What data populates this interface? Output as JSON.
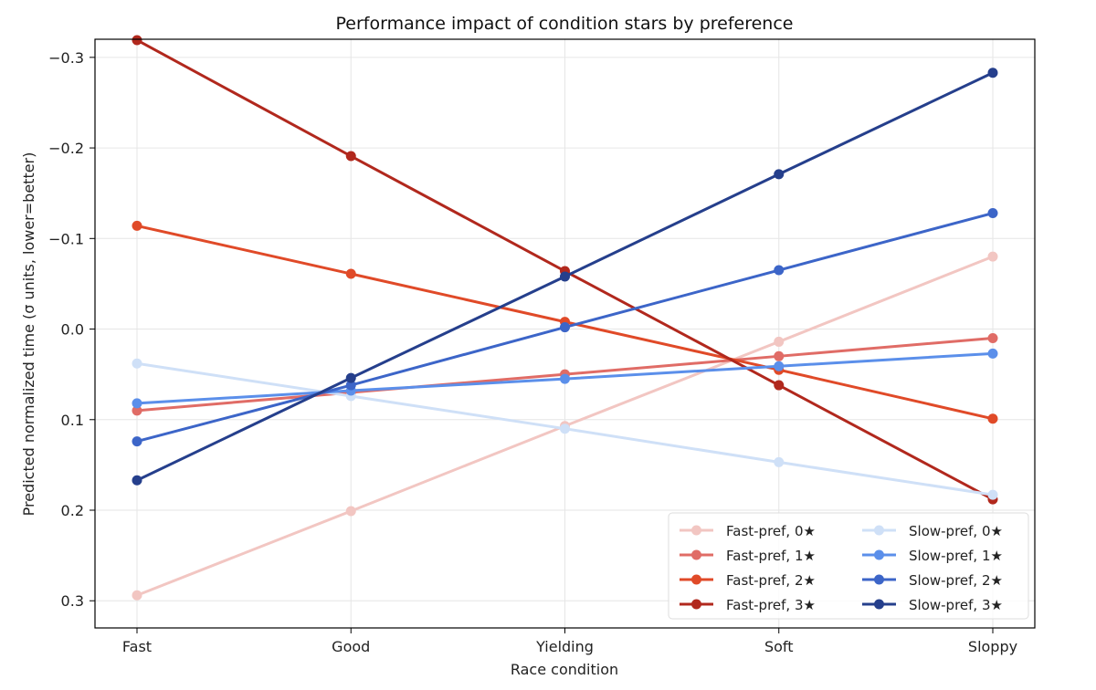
{
  "chart_data": {
    "type": "line",
    "title": "Performance impact of condition stars by preference",
    "xlabel": "Race condition",
    "ylabel": "Predicted normalized time (σ units, lower=better)",
    "categories": [
      "Fast",
      "Good",
      "Yielding",
      "Soft",
      "Sloppy"
    ],
    "y_inverted": true,
    "ylim": [
      -0.32,
      0.33
    ],
    "yticks": [
      -0.3,
      -0.2,
      -0.1,
      0.0,
      0.1,
      0.2,
      0.3
    ],
    "ytick_labels": [
      "−0.3",
      "−0.2",
      "−0.1",
      "0.0",
      "0.1",
      "0.2",
      "0.3"
    ],
    "grid": true,
    "legend_position": "bottom-right",
    "legend_columns": 2,
    "series": [
      {
        "name": "Fast-pref, 0★",
        "color": "#f2c6c2",
        "values": [
          0.294,
          0.201,
          0.107,
          0.014,
          -0.08
        ]
      },
      {
        "name": "Fast-pref, 1★",
        "color": "#e06c66",
        "values": [
          0.09,
          0.07,
          0.05,
          0.03,
          0.01
        ]
      },
      {
        "name": "Fast-pref, 2★",
        "color": "#e04a28",
        "values": [
          -0.114,
          -0.061,
          -0.008,
          0.045,
          0.099
        ]
      },
      {
        "name": "Fast-pref, 3★",
        "color": "#b1281d",
        "values": [
          -0.319,
          -0.191,
          -0.064,
          0.062,
          0.188
        ]
      },
      {
        "name": "Slow-pref, 0★",
        "color": "#cfe0f7",
        "values": [
          0.038,
          0.074,
          0.11,
          0.147,
          0.183
        ]
      },
      {
        "name": "Slow-pref, 1★",
        "color": "#5b8fea",
        "values": [
          0.082,
          0.068,
          0.055,
          0.041,
          0.027
        ]
      },
      {
        "name": "Slow-pref, 2★",
        "color": "#3c65c8",
        "values": [
          0.124,
          0.062,
          -0.002,
          -0.065,
          -0.128
        ]
      },
      {
        "name": "Slow-pref, 3★",
        "color": "#253f8c",
        "values": [
          0.167,
          0.054,
          -0.058,
          -0.171,
          -0.283
        ]
      }
    ]
  }
}
